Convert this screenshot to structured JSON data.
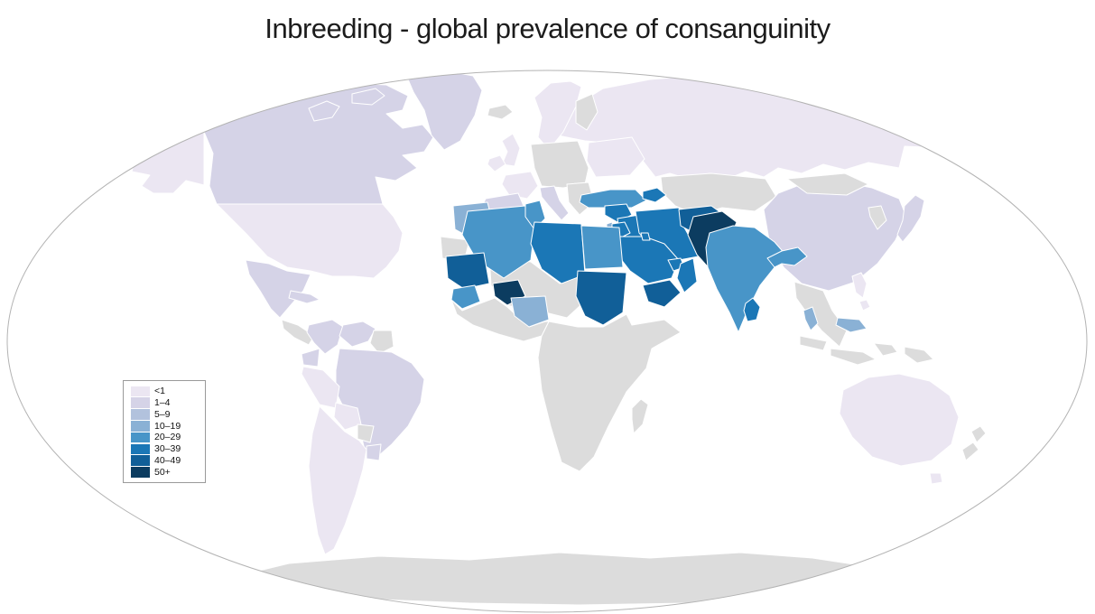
{
  "title": "Inbreeding -  global prevalence of consanguinity",
  "legend": {
    "categories": [
      {
        "label": "<1",
        "color": "#ebe6f2"
      },
      {
        "label": "1–4",
        "color": "#d5d3e7"
      },
      {
        "label": "5–9",
        "color": "#b2c2dd"
      },
      {
        "label": "10–19",
        "color": "#8ab1d5"
      },
      {
        "label": "20–29",
        "color": "#4895c8"
      },
      {
        "label": "30–39",
        "color": "#1b77b6"
      },
      {
        "label": "40–49",
        "color": "#115f98"
      },
      {
        "label": "50+",
        "color": "#0c3c60"
      }
    ]
  },
  "map": {
    "projection": "Robinson-style world map",
    "ocean_color": "#ffffff",
    "no_data_color": "#dcdcdc",
    "border_color": "#ffffff",
    "outline_color": "#b3b3b3",
    "regions": {
      "united-states": "<1",
      "canada": "1–4",
      "greenland": "1–4",
      "mexico": "1–4",
      "cuba": "1–4",
      "colombia": "1–4",
      "venezuela": "1–4",
      "ecuador": "1–4",
      "brazil": "1–4",
      "uruguay": "1–4",
      "peru": "<1",
      "bolivia": "<1",
      "chile-argentina": "<1",
      "united-kingdom": "<1",
      "ireland": "<1",
      "france": "<1",
      "norway-sweden": "<1",
      "ukraine": "<1",
      "russia": "<1",
      "spain-portugal": "1–4",
      "italy": "1–4",
      "china": "1–4",
      "japan": "1–4",
      "australia": "<1",
      "philippines": "<1",
      "turkey": "20–29",
      "algeria": "20–29",
      "tunisia": "20–29",
      "egypt": "20–29",
      "india": "20–29",
      "bangladesh": "20–29",
      "guinea": "20–29",
      "morocco": "10–19",
      "nigeria": "10–19",
      "malaysia": "10–19",
      "israel": "10–19",
      "syria": "30–39",
      "iraq": "30–39",
      "iran": "30–39",
      "jordan": "30–39",
      "saudi-arabia": "30–39",
      "kuwait": "30–39",
      "united-arab-emirates": "30–39",
      "oman": "30–39",
      "azerbaijan": "30–39",
      "libya": "30–39",
      "sri-lanka": "30–39",
      "afghanistan": "40–49",
      "yemen": "40–49",
      "sudan": "40–49",
      "mauritania": "40–49",
      "pakistan": "50+",
      "burkina-faso": "50+"
    },
    "no_data_regions": [
      "iceland",
      "finland",
      "central-europe",
      "balkans",
      "kazakhstan-central-asia",
      "mongolia",
      "korea",
      "southeast-asia",
      "indonesia",
      "papua-new-guinea",
      "new-zealand",
      "central-america",
      "guyana-suriname",
      "paraguay",
      "sahel-mali-niger-chad",
      "western-sahara",
      "sub-saharan-africa",
      "west-african-coast",
      "madagascar",
      "antarctica"
    ]
  },
  "chart_data": {
    "type": "heatmap",
    "subtype": "choropleth-world-map",
    "title": "Inbreeding -  global prevalence of consanguinity",
    "unit": "percent prevalence of consanguinity",
    "legend_position": "middle-left",
    "categories": [
      "<1",
      "1–4",
      "5–9",
      "10–19",
      "20–29",
      "30–39",
      "40–49",
      "50+"
    ],
    "category_colors": [
      "#ebe6f2",
      "#d5d3e7",
      "#b2c2dd",
      "#8ab1d5",
      "#4895c8",
      "#1b77b6",
      "#115f98",
      "#0c3c60"
    ],
    "values": {
      "50+": [
        "Pakistan",
        "Burkina Faso"
      ],
      "40–49": [
        "Afghanistan",
        "Sudan",
        "Yemen",
        "Mauritania"
      ],
      "30–39": [
        "Iran",
        "Iraq",
        "Syria",
        "Jordan",
        "Saudi Arabia",
        "Kuwait",
        "United Arab Emirates",
        "Oman",
        "Libya",
        "Azerbaijan",
        "Sri Lanka"
      ],
      "20–29": [
        "Turkey",
        "Algeria",
        "Tunisia",
        "Egypt",
        "India",
        "Bangladesh",
        "Guinea"
      ],
      "10–19": [
        "Morocco",
        "Nigeria",
        "Malaysia",
        "Israel"
      ],
      "5–9": [],
      "1–4": [
        "Canada",
        "Greenland",
        "Mexico",
        "Cuba",
        "Colombia",
        "Venezuela",
        "Ecuador",
        "Brazil",
        "Uruguay",
        "Spain",
        "Portugal",
        "Italy",
        "China",
        "Japan"
      ],
      "<1": [
        "United States",
        "Peru",
        "Bolivia",
        "Chile",
        "Argentina",
        "United Kingdom",
        "Ireland",
        "France",
        "Norway",
        "Sweden",
        "Ukraine",
        "Russia",
        "Australia",
        "Philippines"
      ],
      "no_data": [
        "Kazakhstan",
        "Central Asia",
        "Mongolia",
        "Korea",
        "Southeast Asia",
        "Indonesia",
        "Papua New Guinea",
        "New Zealand",
        "Central Europe",
        "Balkans",
        "Sub-Saharan Africa",
        "Mali",
        "Niger",
        "Chad",
        "Western Sahara",
        "Madagascar",
        "Central America",
        "Paraguay",
        "Guyana",
        "Suriname",
        "Antarctica"
      ]
    }
  }
}
